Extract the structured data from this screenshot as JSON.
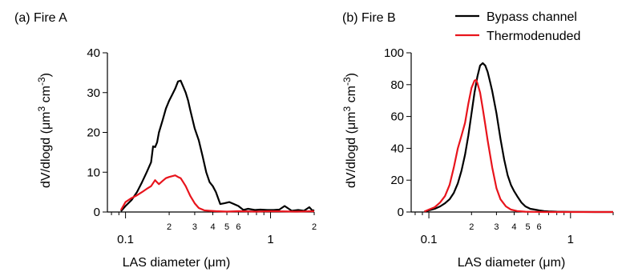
{
  "legend": [
    {
      "label": "Bypass channel",
      "color": "#000000"
    },
    {
      "label": "Thermodenuded",
      "color": "#e8141c"
    }
  ],
  "chart_data": [
    {
      "type": "line",
      "title": "(a) Fire A",
      "xlabel": "LAS diameter (μm)",
      "ylabel_main": "dV/dlogd (μm",
      "ylabel_sup1": "3",
      "ylabel_mid": " cm",
      "ylabel_sup2": "-3",
      "ylabel_end": ")",
      "xscale": "log",
      "xlim": [
        0.075,
        2.0
      ],
      "ylim": [
        0,
        40
      ],
      "yticks": [
        0,
        10,
        20,
        30,
        40
      ],
      "xticks_major": [
        {
          "v": 0.1,
          "label": "0.1"
        },
        {
          "v": 1,
          "label": "1"
        }
      ],
      "xticks_minor_labeled": [
        {
          "v": 0.2,
          "label": "2"
        },
        {
          "v": 0.3,
          "label": "3"
        },
        {
          "v": 0.4,
          "label": "4"
        },
        {
          "v": 0.5,
          "label": "5"
        },
        {
          "v": 0.6,
          "label": "6"
        },
        {
          "v": 2.0,
          "label": "2"
        }
      ],
      "series": [
        {
          "name": "Bypass channel",
          "color": "#000000",
          "x": [
            0.093,
            0.1,
            0.11,
            0.12,
            0.13,
            0.14,
            0.15,
            0.155,
            0.16,
            0.165,
            0.17,
            0.18,
            0.19,
            0.2,
            0.21,
            0.22,
            0.23,
            0.24,
            0.25,
            0.26,
            0.27,
            0.28,
            0.3,
            0.32,
            0.34,
            0.36,
            0.38,
            0.4,
            0.42,
            0.45,
            0.48,
            0.52,
            0.56,
            0.6,
            0.65,
            0.7,
            0.78,
            0.85,
            0.95,
            1.05,
            1.15,
            1.25,
            1.4,
            1.55,
            1.7,
            1.85,
            1.95,
            2.0
          ],
          "y": [
            0.2,
            1.5,
            3.0,
            5.0,
            7.5,
            10.0,
            12.5,
            16.5,
            16.3,
            17.5,
            20.0,
            23.0,
            26.0,
            28.0,
            29.5,
            31.0,
            32.8,
            33.0,
            31.5,
            30.0,
            28.0,
            25.5,
            21.0,
            18.0,
            14.0,
            10.0,
            7.5,
            6.5,
            5.0,
            2.0,
            2.2,
            2.5,
            2.0,
            1.5,
            0.5,
            0.8,
            0.5,
            0.6,
            0.5,
            0.5,
            0.6,
            1.5,
            0.3,
            0.5,
            0.3,
            1.2,
            0.3,
            0.5
          ]
        },
        {
          "name": "Thermodenuded",
          "color": "#e8141c",
          "x": [
            0.093,
            0.1,
            0.11,
            0.12,
            0.13,
            0.14,
            0.15,
            0.16,
            0.17,
            0.18,
            0.19,
            0.2,
            0.21,
            0.22,
            0.23,
            0.24,
            0.25,
            0.26,
            0.28,
            0.3,
            0.32,
            0.35,
            0.38,
            0.42,
            0.5,
            0.6,
            0.8,
            1.0,
            1.5,
            2.0
          ],
          "y": [
            0.5,
            2.5,
            3.5,
            4.2,
            5.0,
            5.8,
            6.5,
            8.0,
            7.0,
            7.8,
            8.5,
            8.8,
            9.0,
            9.2,
            8.8,
            8.5,
            7.5,
            6.5,
            4.0,
            2.2,
            1.0,
            0.4,
            0.3,
            0.2,
            0.1,
            0.2,
            0.1,
            0.2,
            0.1,
            0.2
          ]
        }
      ]
    },
    {
      "type": "line",
      "title": "(b) Fire B",
      "xlabel": "LAS diameter (μm)",
      "ylabel_main": "dV/dlogd (μm",
      "ylabel_sup1": "3",
      "ylabel_mid": " cm",
      "ylabel_sup2": "-3",
      "ylabel_end": ")",
      "xscale": "log",
      "xlim": [
        0.075,
        2.0
      ],
      "ylim": [
        0,
        100
      ],
      "yticks": [
        0,
        20,
        40,
        60,
        80,
        100
      ],
      "xticks_major": [
        {
          "v": 0.1,
          "label": "0.1"
        },
        {
          "v": 1,
          "label": "1"
        }
      ],
      "xticks_minor_labeled": [
        {
          "v": 0.2,
          "label": "2"
        },
        {
          "v": 0.3,
          "label": "3"
        },
        {
          "v": 0.4,
          "label": "4"
        },
        {
          "v": 0.5,
          "label": "5"
        },
        {
          "v": 0.6,
          "label": "6"
        }
      ],
      "series": [
        {
          "name": "Bypass channel",
          "color": "#000000",
          "x": [
            0.093,
            0.1,
            0.11,
            0.12,
            0.13,
            0.14,
            0.15,
            0.16,
            0.17,
            0.18,
            0.19,
            0.2,
            0.21,
            0.22,
            0.23,
            0.24,
            0.25,
            0.26,
            0.27,
            0.28,
            0.3,
            0.32,
            0.34,
            0.36,
            0.38,
            0.4,
            0.42,
            0.45,
            0.48,
            0.52,
            0.56,
            0.6,
            0.65,
            0.7,
            0.8,
            1.0,
            1.5,
            2.0
          ],
          "y": [
            0.3,
            1.0,
            2.0,
            3.5,
            5.5,
            8.0,
            12.0,
            18.0,
            26.0,
            36.0,
            48.0,
            62.0,
            75.0,
            85.0,
            92.0,
            93.5,
            92.0,
            88.0,
            82.0,
            76.0,
            62.0,
            46.0,
            33.0,
            23.0,
            17.0,
            13.0,
            10.0,
            6.0,
            3.5,
            2.0,
            1.5,
            1.0,
            0.6,
            0.4,
            0.2,
            0.1,
            0.0,
            0.0
          ]
        },
        {
          "name": "Thermodenuded",
          "color": "#e8141c",
          "x": [
            0.093,
            0.1,
            0.11,
            0.12,
            0.13,
            0.14,
            0.15,
            0.16,
            0.17,
            0.18,
            0.19,
            0.2,
            0.21,
            0.215,
            0.22,
            0.23,
            0.24,
            0.25,
            0.26,
            0.28,
            0.3,
            0.32,
            0.35,
            0.38,
            0.42,
            0.48,
            0.55,
            0.65,
            0.8,
            1.0,
            1.5,
            2.0
          ],
          "y": [
            0.3,
            1.5,
            3.0,
            6.0,
            10.0,
            17.0,
            28.0,
            40.0,
            48.0,
            56.0,
            68.0,
            78.0,
            82.5,
            83.0,
            81.0,
            75.0,
            65.0,
            55.0,
            45.0,
            28.0,
            15.0,
            8.0,
            3.5,
            1.5,
            0.6,
            0.2,
            0.1,
            0.0,
            0.0,
            0.0,
            0.0,
            0.0
          ]
        }
      ]
    }
  ]
}
